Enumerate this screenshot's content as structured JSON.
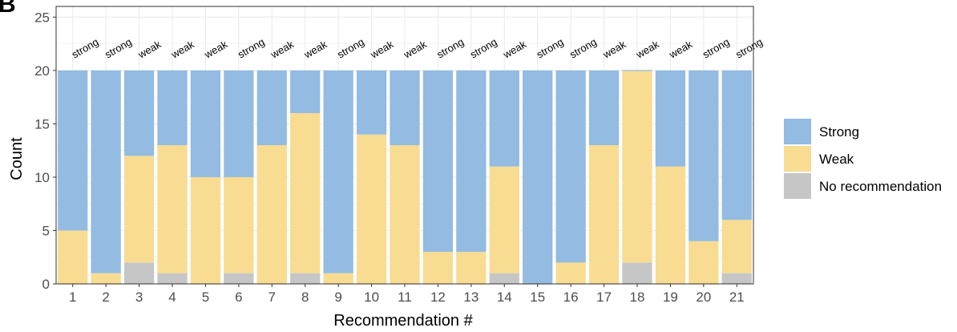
{
  "panel_letter": "B",
  "colors": {
    "Strong": "#94bbe1",
    "Weak": "#f7dc92",
    "No recommendation": "#c6c6c6",
    "grid": "#ebebeb",
    "border": "#333333"
  },
  "chart_data": {
    "type": "bar",
    "stacked": true,
    "xlabel": "Recommendation #",
    "ylabel": "Count",
    "ylim": [
      0,
      26
    ],
    "yticks": [
      0,
      5,
      10,
      15,
      20,
      25
    ],
    "grid": true,
    "legend_position": "right",
    "categories": [
      "1",
      "2",
      "3",
      "4",
      "5",
      "6",
      "7",
      "8",
      "9",
      "10",
      "11",
      "12",
      "13",
      "14",
      "15",
      "16",
      "17",
      "18",
      "19",
      "20",
      "21"
    ],
    "bar_labels": [
      "strong",
      "strong",
      "weak",
      "weak",
      "weak",
      "strong",
      "weak",
      "weak",
      "strong",
      "weak",
      "weak",
      "strong",
      "strong",
      "weak",
      "strong",
      "strong",
      "weak",
      "weak",
      "weak",
      "strong",
      "strong"
    ],
    "series": [
      {
        "name": "No recommendation",
        "values": [
          0,
          0,
          2,
          1,
          0,
          1,
          0,
          1,
          0,
          0,
          0,
          0,
          0,
          1,
          0,
          0,
          0,
          2,
          0,
          0,
          1
        ]
      },
      {
        "name": "Weak",
        "values": [
          5,
          1,
          10,
          12,
          10,
          9,
          13,
          15,
          1,
          14,
          13,
          3,
          3,
          10,
          0,
          2,
          13,
          18,
          11,
          4,
          5
        ]
      },
      {
        "name": "Strong",
        "values": [
          15,
          19,
          8,
          7,
          10,
          10,
          7,
          4,
          19,
          6,
          7,
          17,
          17,
          9,
          20,
          18,
          7,
          0,
          9,
          16,
          14
        ]
      }
    ],
    "legend_order": [
      "Strong",
      "Weak",
      "No recommendation"
    ]
  }
}
